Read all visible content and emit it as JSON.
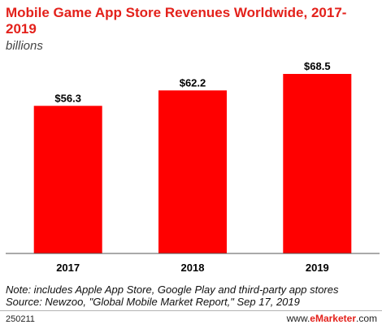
{
  "header": {
    "title": "Mobile Game App Store Revenues Worldwide, 2017-2019",
    "subtitle": "billions"
  },
  "chart_data": {
    "type": "bar",
    "title": "Mobile Game App Store Revenues Worldwide, 2017-2019",
    "subtitle": "billions",
    "categories": [
      "2017",
      "2018",
      "2019"
    ],
    "values": [
      56.3,
      62.2,
      68.5
    ],
    "value_labels": [
      "$56.3",
      "$62.2",
      "$68.5"
    ],
    "ylim": [
      0,
      75
    ],
    "grid": false,
    "bar_color": "#ff0000"
  },
  "footer": {
    "note": "Note: includes Apple App Store, Google Play and third-party app stores",
    "source": "Source: Newzoo, \"Global Mobile Market Report,\" Sep 17, 2019",
    "code": "250211",
    "brand_prefix": "www.",
    "brand": "eMarketer",
    "brand_suffix": ".com"
  }
}
